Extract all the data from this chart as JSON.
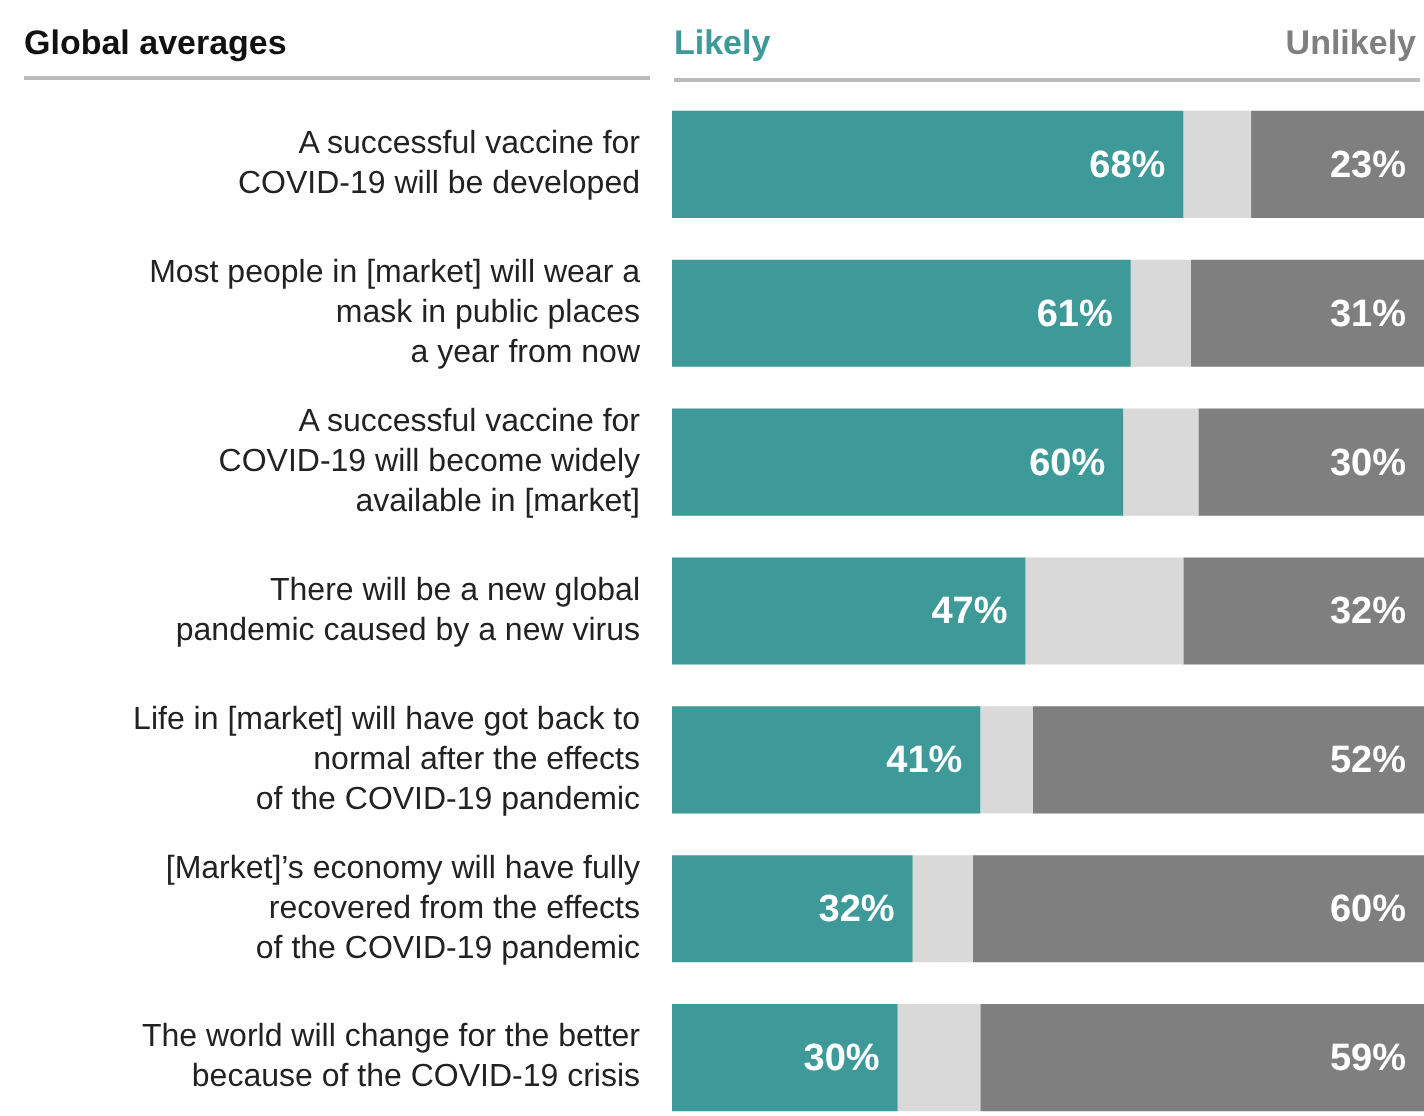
{
  "chart_data": {
    "type": "bar",
    "orientation": "horizontal",
    "stacked": true,
    "title": "Global averages",
    "legend": "top",
    "categories": [
      "A successful vaccine for\nCOVID-19 will be developed",
      "Most people in [market] will wear a\nmask in public places\na year from now",
      "A successful vaccine for\nCOVID-19 will become widely\navailable in [market]",
      "There will be a new global\npandemic caused by a new virus",
      "Life in [market] will have got back to\nnormal after the effects\nof the COVID-19 pandemic",
      "[Market]’s economy will have fully\nrecovered from the effects\nof the COVID-19 pandemic",
      "The world will change for the better\nbecause of the COVID-19 crisis"
    ],
    "series": [
      {
        "name": "Likely",
        "color": "#3d9a98",
        "values": [
          68,
          61,
          60,
          47,
          41,
          32,
          30
        ],
        "value_labels": [
          "68%",
          "61%",
          "60%",
          "47%",
          "41%",
          "32%",
          "30%"
        ]
      },
      {
        "color": "#d9d9d9",
        "values": [
          9,
          8,
          10,
          21,
          7,
          8,
          11
        ]
      },
      {
        "name": "Unlikely",
        "color": "#7f7f7f",
        "values": [
          23,
          31,
          30,
          32,
          52,
          60,
          59
        ],
        "value_labels": [
          "23%",
          "31%",
          "30%",
          "32%",
          "52%",
          "60%",
          "59%"
        ]
      }
    ],
    "xlim": [
      0,
      100
    ],
    "tick_labels": "y"
  }
}
